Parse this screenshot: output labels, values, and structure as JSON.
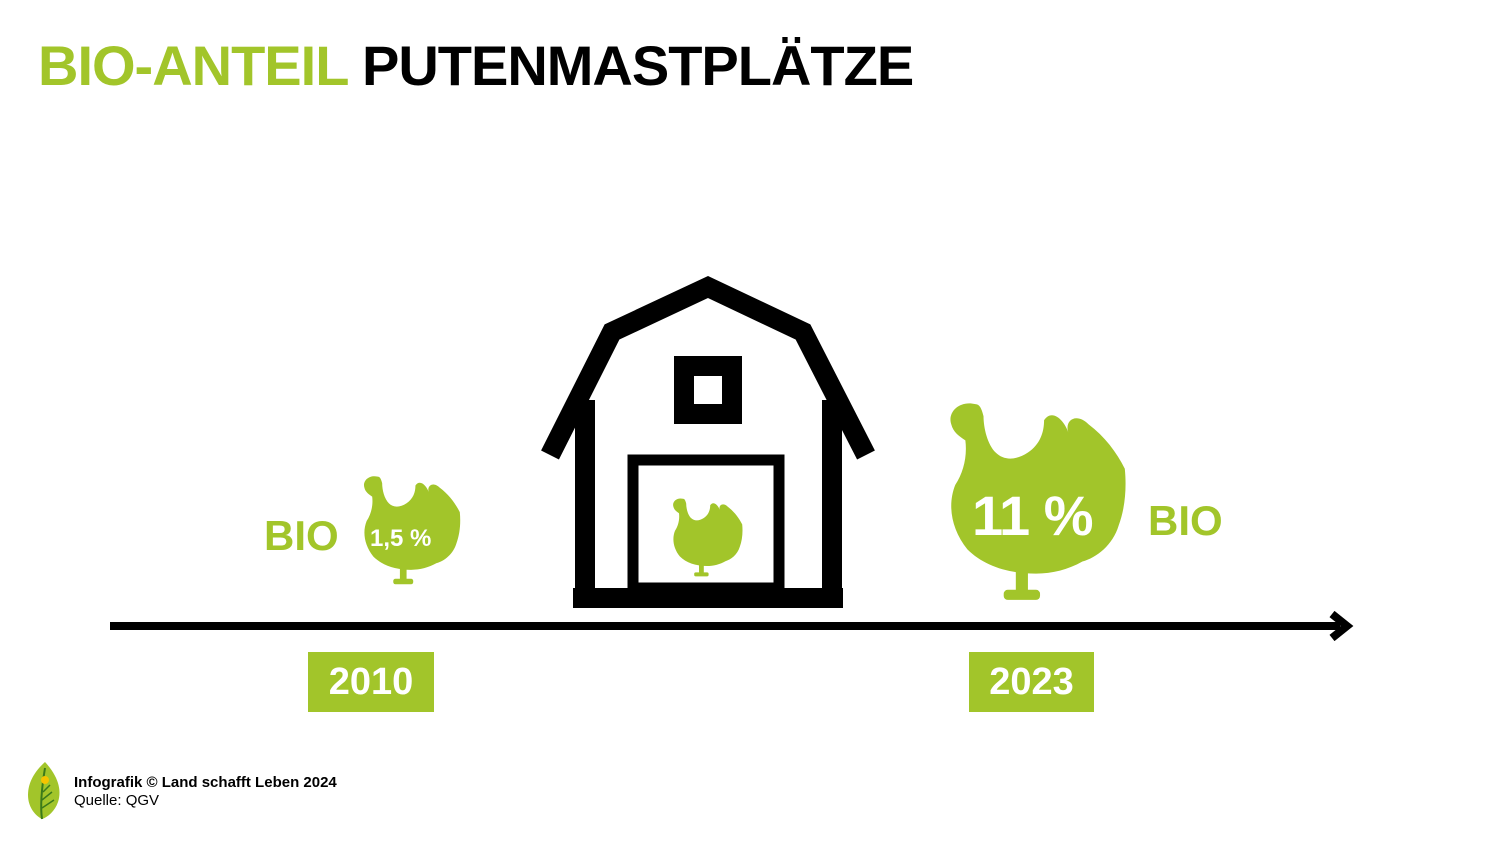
{
  "title": {
    "highlight": "BIO-ANTEIL",
    "rest": "PUTENMASTPLÄTZE"
  },
  "left_group": {
    "bio_label": "BIO",
    "percent_label": "1,5 %",
    "year": "2010"
  },
  "right_group": {
    "bio_label": "BIO",
    "percent_label": "11 %",
    "year": "2023"
  },
  "footer": {
    "credit": "Infografik © Land schafft Leben 2024",
    "source": "Quelle: QGV"
  },
  "colors": {
    "accent": "#a2c52a",
    "ink": "#000000",
    "background": "#ffffff"
  },
  "icons": [
    "turkey-icon",
    "barn-icon",
    "timeline-arrow-icon",
    "leaf-logo-icon"
  ]
}
